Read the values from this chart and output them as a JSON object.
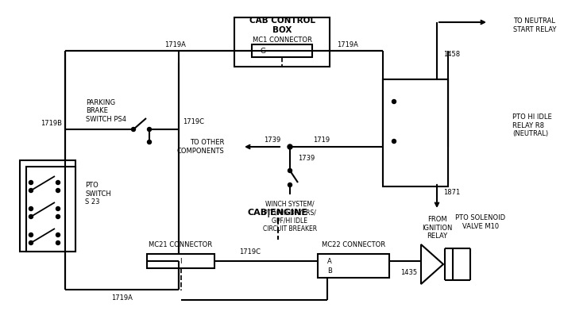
{
  "bg": "#ffffff",
  "lc": "#000000",
  "labels": {
    "cab_control_box": "CAB CONTROL\nBOX",
    "mc1_connector": "MC1 CONNECTOR",
    "mc1_pin": "G",
    "parking_brake": "PARKING\nBRAKE\nSWITCH PS4",
    "pto_switch": "PTO\nSWITCH\nS 23",
    "to_other": "TO OTHER\nCOMPONENTS",
    "winch": "WINCH SYSTEM/\nPTO/AIR DRYERS/\nGPF/HI IDLE\nCIRCUIT BREAKER",
    "to_neutral": "TO NEUTRAL\nSTART RELAY",
    "pto_hi_idle": "PTO HI IDLE\nRELAY R8\n(NEUTRAL)",
    "from_ignition": "FROM\nIGNITION\nRELAY",
    "cab_engine": "CAB|ENGINE",
    "mc21_connector": "MC21 CONNECTOR",
    "mc22_connector": "MC22 CONNECTOR",
    "pto_solenoid": "PTO SOLENOID\nVALVE M10",
    "1719A": "1719A",
    "1719B": "1719B",
    "1719C": "1719C",
    "1719": "1719",
    "1739a": "1739",
    "1739b": "1739",
    "1458": "1458",
    "1871": "1871",
    "1435": "1435",
    "A": "A",
    "B": "B"
  }
}
